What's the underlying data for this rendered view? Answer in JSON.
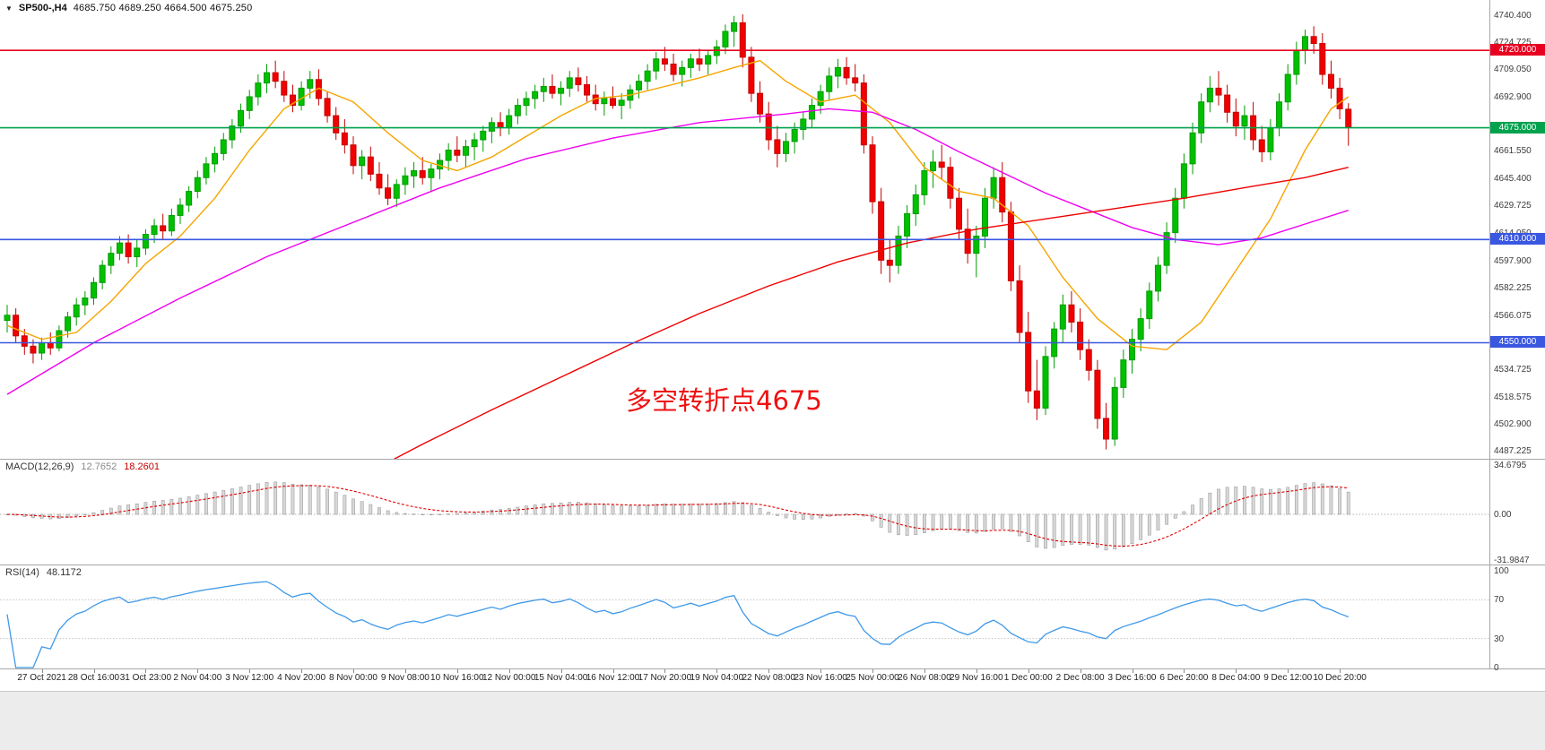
{
  "title": {
    "symbol": "SP500-,H4",
    "ohlc": "4685.750 4689.250 4664.500 4675.250"
  },
  "icons": {
    "collapse": "▼"
  },
  "annotation": {
    "text": "多空转折点4675",
    "color": "#ee1111"
  },
  "chart_data": {
    "type": "candlestick",
    "title": "SP500-,H4",
    "ylim": [
      4487.225,
      4740.4
    ],
    "y_tick_labels": [
      "4740.400",
      "4724.725",
      "4709.050",
      "4692.900",
      "4661.550",
      "4645.400",
      "4629.725",
      "4614.050",
      "4597.900",
      "4582.225",
      "4566.075",
      "4534.725",
      "4518.575",
      "4502.900",
      "4487.225"
    ],
    "x_labels": [
      "27 Oct 2021",
      "28 Oct 16:00",
      "31 Oct 23:00",
      "2 Nov 04:00",
      "3 Nov 12:00",
      "4 Nov 20:00",
      "8 Nov 00:00",
      "9 Nov 08:00",
      "10 Nov 16:00",
      "12 Nov 00:00",
      "15 Nov 04:00",
      "16 Nov 12:00",
      "17 Nov 20:00",
      "19 Nov 04:00",
      "22 Nov 08:00",
      "23 Nov 16:00",
      "25 Nov 00:00",
      "26 Nov 08:00",
      "29 Nov 16:00",
      "1 Dec 00:00",
      "2 Dec 08:00",
      "3 Dec 16:00",
      "6 Dec 20:00",
      "8 Dec 04:00",
      "9 Dec 12:00",
      "10 Dec 20:00"
    ],
    "colors": {
      "up": "#00C000",
      "up_stroke": "#009c00",
      "down": "#F00000",
      "down_stroke": "#c40000",
      "grid": "#c0c0c0"
    },
    "hlines": [
      {
        "price": 4720.0,
        "label": "4720.000",
        "color": "#e80020"
      },
      {
        "price": 4675.0,
        "label": "4675.000",
        "color": "#00a24e"
      },
      {
        "price": 4610.0,
        "label": "4610.000",
        "color": "#3a57e0"
      },
      {
        "price": 4550.0,
        "label": "4550.000",
        "color": "#3a57e0"
      }
    ],
    "ma_lines": [
      {
        "name": "ma-fast-orange",
        "color": "#f5a500",
        "points": [
          [
            0,
            4560
          ],
          [
            4,
            4552
          ],
          [
            8,
            4556
          ],
          [
            12,
            4574
          ],
          [
            16,
            4596
          ],
          [
            20,
            4612
          ],
          [
            24,
            4634
          ],
          [
            28,
            4662
          ],
          [
            32,
            4686
          ],
          [
            36,
            4698
          ],
          [
            40,
            4690
          ],
          [
            44,
            4672
          ],
          [
            48,
            4656
          ],
          [
            52,
            4650
          ],
          [
            56,
            4658
          ],
          [
            60,
            4670
          ],
          [
            64,
            4682
          ],
          [
            68,
            4692
          ],
          [
            72,
            4694
          ],
          [
            76,
            4699
          ],
          [
            80,
            4704
          ],
          [
            84,
            4710
          ],
          [
            87,
            4714
          ],
          [
            90,
            4702
          ],
          [
            94,
            4690
          ],
          [
            98,
            4694
          ],
          [
            102,
            4678
          ],
          [
            106,
            4652
          ],
          [
            110,
            4638
          ],
          [
            114,
            4634
          ],
          [
            118,
            4618
          ],
          [
            122,
            4588
          ],
          [
            126,
            4564
          ],
          [
            130,
            4548
          ],
          [
            134,
            4546
          ],
          [
            138,
            4562
          ],
          [
            142,
            4592
          ],
          [
            146,
            4622
          ],
          [
            150,
            4662
          ],
          [
            153,
            4686
          ],
          [
            155,
            4693
          ]
        ]
      },
      {
        "name": "ma-mid-magenta",
        "color": "#f000f0",
        "points": [
          [
            0,
            4520
          ],
          [
            10,
            4550
          ],
          [
            20,
            4576
          ],
          [
            30,
            4600
          ],
          [
            40,
            4620
          ],
          [
            50,
            4640
          ],
          [
            60,
            4657
          ],
          [
            70,
            4669
          ],
          [
            80,
            4678
          ],
          [
            90,
            4683
          ],
          [
            95,
            4686
          ],
          [
            100,
            4684
          ],
          [
            105,
            4674
          ],
          [
            110,
            4661
          ],
          [
            115,
            4649
          ],
          [
            120,
            4637
          ],
          [
            125,
            4627
          ],
          [
            130,
            4617
          ],
          [
            135,
            4610
          ],
          [
            140,
            4607
          ],
          [
            145,
            4611
          ],
          [
            150,
            4619
          ],
          [
            155,
            4627
          ]
        ]
      },
      {
        "name": "ma-slow-red",
        "color": "#f00000",
        "points": [
          [
            40,
            4470
          ],
          [
            48,
            4491
          ],
          [
            56,
            4511
          ],
          [
            64,
            4530
          ],
          [
            72,
            4549
          ],
          [
            80,
            4567
          ],
          [
            88,
            4583
          ],
          [
            96,
            4597
          ],
          [
            104,
            4608
          ],
          [
            112,
            4616
          ],
          [
            120,
            4622
          ],
          [
            128,
            4628
          ],
          [
            136,
            4634
          ],
          [
            144,
            4641
          ],
          [
            150,
            4646
          ],
          [
            155,
            4652
          ]
        ]
      }
    ],
    "candles": [
      [
        4563,
        4572,
        4556,
        4566
      ],
      [
        4566,
        4570,
        4550,
        4554
      ],
      [
        4554,
        4558,
        4543,
        4548
      ],
      [
        4548,
        4552,
        4538,
        4544
      ],
      [
        4544,
        4553,
        4540,
        4550
      ],
      [
        4550,
        4556,
        4543,
        4547
      ],
      [
        4547,
        4560,
        4545,
        4557
      ],
      [
        4557,
        4568,
        4553,
        4565
      ],
      [
        4565,
        4576,
        4560,
        4572
      ],
      [
        4572,
        4580,
        4566,
        4576
      ],
      [
        4576,
        4588,
        4572,
        4585
      ],
      [
        4585,
        4598,
        4581,
        4595
      ],
      [
        4595,
        4606,
        4590,
        4602
      ],
      [
        4602,
        4612,
        4598,
        4608
      ],
      [
        4608,
        4613,
        4596,
        4600
      ],
      [
        4600,
        4610,
        4594,
        4605
      ],
      [
        4605,
        4616,
        4601,
        4613
      ],
      [
        4613,
        4622,
        4608,
        4618
      ],
      [
        4618,
        4625,
        4610,
        4615
      ],
      [
        4615,
        4628,
        4612,
        4624
      ],
      [
        4624,
        4634,
        4619,
        4630
      ],
      [
        4630,
        4641,
        4626,
        4638
      ],
      [
        4638,
        4650,
        4634,
        4646
      ],
      [
        4646,
        4658,
        4642,
        4654
      ],
      [
        4654,
        4664,
        4649,
        4660
      ],
      [
        4660,
        4672,
        4656,
        4668
      ],
      [
        4668,
        4680,
        4663,
        4676
      ],
      [
        4676,
        4689,
        4672,
        4685
      ],
      [
        4685,
        4697,
        4680,
        4693
      ],
      [
        4693,
        4706,
        4688,
        4701
      ],
      [
        4701,
        4712,
        4695,
        4707
      ],
      [
        4707,
        4714,
        4698,
        4702
      ],
      [
        4702,
        4708,
        4690,
        4694
      ],
      [
        4694,
        4700,
        4684,
        4688
      ],
      [
        4688,
        4702,
        4685,
        4698
      ],
      [
        4698,
        4708,
        4692,
        4703
      ],
      [
        4703,
        4709,
        4688,
        4692
      ],
      [
        4692,
        4696,
        4678,
        4682
      ],
      [
        4682,
        4687,
        4668,
        4672
      ],
      [
        4672,
        4680,
        4660,
        4665
      ],
      [
        4665,
        4670,
        4648,
        4653
      ],
      [
        4653,
        4662,
        4645,
        4658
      ],
      [
        4658,
        4664,
        4644,
        4648
      ],
      [
        4648,
        4655,
        4636,
        4640
      ],
      [
        4640,
        4648,
        4630,
        4634
      ],
      [
        4634,
        4645,
        4629,
        4642
      ],
      [
        4642,
        4652,
        4636,
        4647
      ],
      [
        4647,
        4655,
        4640,
        4650
      ],
      [
        4650,
        4658,
        4642,
        4646
      ],
      [
        4646,
        4654,
        4638,
        4651
      ],
      [
        4651,
        4660,
        4645,
        4656
      ],
      [
        4656,
        4666,
        4650,
        4662
      ],
      [
        4662,
        4670,
        4655,
        4659
      ],
      [
        4659,
        4668,
        4652,
        4664
      ],
      [
        4664,
        4672,
        4656,
        4668
      ],
      [
        4668,
        4676,
        4661,
        4673
      ],
      [
        4673,
        4681,
        4666,
        4678
      ],
      [
        4678,
        4684,
        4670,
        4675
      ],
      [
        4675,
        4686,
        4671,
        4682
      ],
      [
        4682,
        4692,
        4677,
        4688
      ],
      [
        4688,
        4696,
        4682,
        4692
      ],
      [
        4692,
        4700,
        4686,
        4696
      ],
      [
        4696,
        4704,
        4690,
        4699
      ],
      [
        4699,
        4706,
        4692,
        4695
      ],
      [
        4695,
        4702,
        4688,
        4698
      ],
      [
        4698,
        4708,
        4693,
        4704
      ],
      [
        4704,
        4710,
        4696,
        4700
      ],
      [
        4700,
        4705,
        4690,
        4694
      ],
      [
        4694,
        4700,
        4685,
        4689
      ],
      [
        4689,
        4696,
        4682,
        4692
      ],
      [
        4692,
        4699,
        4686,
        4688
      ],
      [
        4688,
        4695,
        4680,
        4691
      ],
      [
        4691,
        4700,
        4686,
        4697
      ],
      [
        4697,
        4706,
        4692,
        4702
      ],
      [
        4702,
        4712,
        4697,
        4708
      ],
      [
        4708,
        4719,
        4703,
        4715
      ],
      [
        4715,
        4722,
        4708,
        4712
      ],
      [
        4712,
        4718,
        4702,
        4706
      ],
      [
        4706,
        4714,
        4699,
        4710
      ],
      [
        4710,
        4718,
        4704,
        4715
      ],
      [
        4715,
        4721,
        4708,
        4712
      ],
      [
        4712,
        4720,
        4706,
        4717
      ],
      [
        4717,
        4726,
        4712,
        4722
      ],
      [
        4722,
        4735,
        4718,
        4731
      ],
      [
        4731,
        4740,
        4722,
        4736
      ],
      [
        4736,
        4741,
        4710,
        4716
      ],
      [
        4716,
        4722,
        4690,
        4695
      ],
      [
        4695,
        4702,
        4678,
        4683
      ],
      [
        4683,
        4690,
        4662,
        4668
      ],
      [
        4668,
        4676,
        4652,
        4660
      ],
      [
        4660,
        4672,
        4655,
        4667
      ],
      [
        4667,
        4678,
        4660,
        4674
      ],
      [
        4674,
        4684,
        4668,
        4680
      ],
      [
        4680,
        4692,
        4675,
        4688
      ],
      [
        4688,
        4700,
        4683,
        4696
      ],
      [
        4696,
        4710,
        4691,
        4705
      ],
      [
        4705,
        4715,
        4698,
        4710
      ],
      [
        4710,
        4716,
        4700,
        4704
      ],
      [
        4704,
        4712,
        4696,
        4701
      ],
      [
        4701,
        4706,
        4660,
        4665
      ],
      [
        4665,
        4670,
        4625,
        4632
      ],
      [
        4632,
        4640,
        4590,
        4598
      ],
      [
        4598,
        4610,
        4585,
        4595
      ],
      [
        4595,
        4618,
        4590,
        4612
      ],
      [
        4612,
        4630,
        4605,
        4625
      ],
      [
        4625,
        4642,
        4618,
        4636
      ],
      [
        4636,
        4655,
        4630,
        4650
      ],
      [
        4650,
        4662,
        4640,
        4655
      ],
      [
        4655,
        4665,
        4645,
        4652
      ],
      [
        4652,
        4658,
        4628,
        4634
      ],
      [
        4634,
        4640,
        4610,
        4616
      ],
      [
        4616,
        4628,
        4596,
        4602
      ],
      [
        4602,
        4618,
        4588,
        4612
      ],
      [
        4612,
        4640,
        4605,
        4634
      ],
      [
        4634,
        4652,
        4628,
        4646
      ],
      [
        4646,
        4655,
        4620,
        4626
      ],
      [
        4626,
        4632,
        4580,
        4586
      ],
      [
        4586,
        4595,
        4550,
        4556
      ],
      [
        4556,
        4568,
        4515,
        4522
      ],
      [
        4522,
        4540,
        4505,
        4512
      ],
      [
        4512,
        4548,
        4508,
        4542
      ],
      [
        4542,
        4562,
        4535,
        4558
      ],
      [
        4558,
        4578,
        4550,
        4572
      ],
      [
        4572,
        4580,
        4556,
        4562
      ],
      [
        4562,
        4570,
        4540,
        4546
      ],
      [
        4546,
        4552,
        4528,
        4534
      ],
      [
        4534,
        4540,
        4500,
        4506
      ],
      [
        4506,
        4515,
        4488,
        4494
      ],
      [
        4494,
        4530,
        4490,
        4524
      ],
      [
        4524,
        4546,
        4518,
        4540
      ],
      [
        4540,
        4558,
        4532,
        4552
      ],
      [
        4552,
        4570,
        4545,
        4564
      ],
      [
        4564,
        4585,
        4558,
        4580
      ],
      [
        4580,
        4600,
        4574,
        4595
      ],
      [
        4595,
        4620,
        4590,
        4614
      ],
      [
        4614,
        4640,
        4608,
        4634
      ],
      [
        4634,
        4660,
        4628,
        4654
      ],
      [
        4654,
        4678,
        4648,
        4672
      ],
      [
        4672,
        4695,
        4666,
        4690
      ],
      [
        4690,
        4705,
        4684,
        4698
      ],
      [
        4698,
        4708,
        4688,
        4694
      ],
      [
        4694,
        4700,
        4678,
        4684
      ],
      [
        4684,
        4692,
        4670,
        4676
      ],
      [
        4676,
        4688,
        4668,
        4682
      ],
      [
        4682,
        4690,
        4662,
        4668
      ],
      [
        4668,
        4676,
        4655,
        4661
      ],
      [
        4661,
        4680,
        4656,
        4675
      ],
      [
        4675,
        4695,
        4670,
        4690
      ],
      [
        4690,
        4712,
        4685,
        4706
      ],
      [
        4706,
        4725,
        4700,
        4720
      ],
      [
        4720,
        4732,
        4712,
        4728
      ],
      [
        4728,
        4734,
        4718,
        4724
      ],
      [
        4724,
        4730,
        4700,
        4706
      ],
      [
        4706,
        4714,
        4692,
        4698
      ],
      [
        4698,
        4704,
        4680,
        4686
      ],
      [
        4685.75,
        4689.25,
        4664.5,
        4675.25
      ]
    ],
    "macd": {
      "label": "MACD(12,26,9)",
      "value_main": "12.7652",
      "value_signal": "18.2601",
      "fast": 12,
      "slow": 26,
      "signal": 9,
      "y_ticks": [
        {
          "v": 34.6795,
          "label": "34.6795"
        },
        {
          "v": 0,
          "label": "0.00"
        },
        {
          "v": -31.9847,
          "label": "-31.9847"
        }
      ],
      "hist_fill": "#d8d8d8",
      "hist_stroke": "#9e9e9e",
      "signal_color": "#e00000"
    },
    "rsi": {
      "label": "RSI(14)",
      "value": "48.1172",
      "period": 14,
      "y_ticks": [
        {
          "v": 100,
          "label": "100"
        },
        {
          "v": 70,
          "label": "70"
        },
        {
          "v": 30,
          "label": "30"
        },
        {
          "v": 0,
          "label": "0"
        }
      ],
      "levels": [
        70,
        30
      ],
      "color": "#3f99e8"
    }
  }
}
